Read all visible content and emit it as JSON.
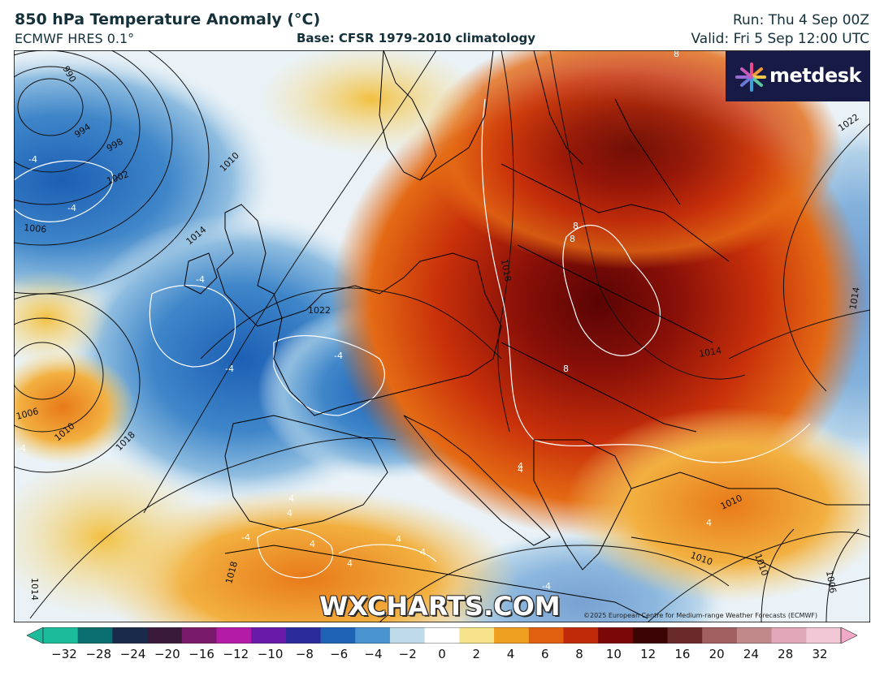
{
  "header": {
    "title": "850 hPa Temperature Anomaly (°C)",
    "model": "ECMWF HRES 0.1°",
    "base": "Base: CFSR 1979-2010 climatology",
    "run": "Run: Thu 4 Sep 00Z",
    "valid": "Valid: Fri 5 Sep 12:00 UTC"
  },
  "logo": {
    "text": "metdesk",
    "icon": "metdesk-starburst-icon",
    "bg_color": "#161a45"
  },
  "watermark": "WXCHARTS.COM",
  "copyright": "©2025 European Centre for Medium-range Weather Forecasts (ECMWF)",
  "colorbar": {
    "ticks": [
      "−32",
      "−28",
      "−24",
      "−20",
      "−16",
      "−12",
      "−10",
      "−8",
      "−6",
      "−4",
      "−2",
      "0",
      "2",
      "4",
      "6",
      "8",
      "10",
      "12",
      "16",
      "20",
      "24",
      "28",
      "32"
    ],
    "colors": [
      "#1abc9c",
      "#0b6e6e",
      "#1a2a4a",
      "#3a1a3a",
      "#7a1a6a",
      "#b41ca8",
      "#6a1aa8",
      "#2a2a9a",
      "#1f63b5",
      "#4a94cf",
      "#bfdbea",
      "#ffffff",
      "#f7e38a",
      "#f0a020",
      "#e06010",
      "#c02a08",
      "#7a0808",
      "#3a0404",
      "#6a2a2a",
      "#a06060",
      "#c08a8a",
      "#e0a8b8",
      "#f2c8d6"
    ],
    "marks": {
      "cold_extreme_color": "#1abc9c",
      "warm_extreme_color": "#f2a8c8"
    }
  },
  "map_labels": {
    "isobars": [
      "990",
      "994",
      "998",
      "1002",
      "1006",
      "1010",
      "1014",
      "1018",
      "1022",
      "1022",
      "1006",
      "1010",
      "1018",
      "1014",
      "1014",
      "1018",
      "1014",
      "1010",
      "1010",
      "1010",
      "1006",
      "1022",
      "1014"
    ],
    "anomaly_contours": [
      "-4",
      "-4",
      "-4",
      "-4",
      "-4",
      "-4",
      "-4",
      "8",
      "8",
      "8",
      "8",
      "4",
      "4",
      "4",
      "4",
      "4",
      "4",
      "4",
      "4",
      "4",
      "4",
      "4",
      "-4",
      "-4"
    ]
  },
  "colors": {
    "text_dark": "#14303a",
    "warm_core": "#7a0808",
    "warm": "#d04010",
    "cold": "#2a6fc0",
    "neutral": "#e8f1f6"
  }
}
